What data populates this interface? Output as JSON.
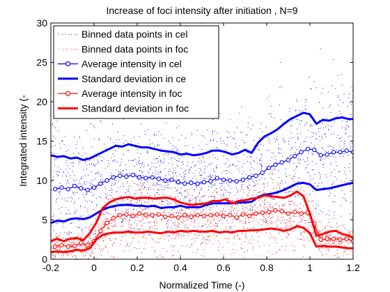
{
  "chart_data": {
    "type": "scatter",
    "title": "Increase of foci intensity after initiation , N=9",
    "xlabel": "Normalized Time (-)",
    "ylabel": "Integrated intensity (-",
    "xlim": [
      -0.2,
      1.2
    ],
    "ylim": [
      0,
      30
    ],
    "xticks": [
      "-0.2",
      "0",
      "0.2",
      "0.4",
      "0.6",
      "0.8",
      "1",
      "1.2"
    ],
    "yticks": [
      "0",
      "5",
      "10",
      "15",
      "20",
      "25",
      "30"
    ],
    "grid": false,
    "legend_position": "top-left",
    "colors": {
      "cell": "#0000ff",
      "foci": "#ff0000"
    },
    "legend": [
      {
        "label": "Binned data points in cel",
        "style": "dots",
        "color": "#0000ff"
      },
      {
        "label": "Binned data points in foc",
        "style": "dots",
        "color": "#ff0000"
      },
      {
        "label": "Average intensity in cel",
        "style": "line-marker",
        "color": "#0000ff"
      },
      {
        "label": "Standard deviation in ce",
        "style": "thick-line",
        "color": "#0000ff"
      },
      {
        "label": "Average intensity in foc",
        "style": "line-marker",
        "color": "#ff0000"
      },
      {
        "label": "Standard deviation in foc",
        "style": "thick-line",
        "color": "#ff0000"
      }
    ],
    "series": [
      {
        "name": "Average intensity in cel",
        "color": "#0000ff",
        "x": [
          -0.18,
          -0.15,
          -0.12,
          -0.09,
          -0.06,
          -0.03,
          0.0,
          0.03,
          0.06,
          0.09,
          0.12,
          0.15,
          0.18,
          0.21,
          0.24,
          0.27,
          0.3,
          0.33,
          0.36,
          0.39,
          0.42,
          0.45,
          0.48,
          0.51,
          0.54,
          0.57,
          0.6,
          0.63,
          0.66,
          0.69,
          0.72,
          0.75,
          0.78,
          0.81,
          0.84,
          0.87,
          0.9,
          0.93,
          0.96,
          0.99,
          1.02,
          1.05,
          1.08,
          1.11,
          1.14,
          1.17,
          1.2
        ],
        "y": [
          8.9,
          9.1,
          8.9,
          9.3,
          9.0,
          8.8,
          9.1,
          9.6,
          10.0,
          10.4,
          10.6,
          10.5,
          10.7,
          10.4,
          10.3,
          10.4,
          10.2,
          10.0,
          10.1,
          9.8,
          9.6,
          9.7,
          9.6,
          9.8,
          9.9,
          10.3,
          10.1,
          10.0,
          9.9,
          10.1,
          10.4,
          10.6,
          11.0,
          11.6,
          12.0,
          12.3,
          12.6,
          13.1,
          13.6,
          14.0,
          13.9,
          13.2,
          13.3,
          13.6,
          13.6,
          13.8,
          13.6
        ]
      },
      {
        "name": "Standard deviation in ce",
        "color": "#0000ff",
        "x": [
          -0.2,
          -0.17,
          -0.14,
          -0.11,
          -0.08,
          -0.05,
          -0.02,
          0.01,
          0.04,
          0.07,
          0.1,
          0.13,
          0.16,
          0.19,
          0.22,
          0.25,
          0.28,
          0.31,
          0.34,
          0.37,
          0.4,
          0.43,
          0.46,
          0.49,
          0.52,
          0.55,
          0.58,
          0.61,
          0.64,
          0.67,
          0.7,
          0.73,
          0.76,
          0.79,
          0.82,
          0.85,
          0.88,
          0.91,
          0.94,
          0.97,
          1.0,
          1.03,
          1.06,
          1.09,
          1.12,
          1.15,
          1.18,
          1.2
        ],
        "y": [
          13.2,
          13.0,
          13.1,
          12.8,
          12.9,
          12.6,
          12.8,
          13.2,
          13.6,
          14.0,
          14.4,
          14.3,
          14.6,
          14.4,
          14.2,
          14.2,
          14.0,
          13.8,
          13.7,
          13.6,
          13.3,
          13.4,
          13.2,
          13.3,
          13.5,
          13.8,
          13.8,
          13.6,
          13.3,
          13.5,
          13.9,
          13.5,
          14.8,
          15.6,
          16.0,
          16.5,
          17.2,
          17.8,
          18.2,
          18.6,
          18.4,
          17.2,
          17.7,
          17.6,
          17.9,
          18.0,
          17.8,
          17.8
        ]
      },
      {
        "name": "Standard deviation in ce",
        "color": "#0000ff",
        "x": [
          -0.2,
          -0.17,
          -0.14,
          -0.11,
          -0.08,
          -0.05,
          -0.02,
          0.01,
          0.04,
          0.07,
          0.1,
          0.13,
          0.16,
          0.19,
          0.22,
          0.25,
          0.28,
          0.31,
          0.34,
          0.37,
          0.4,
          0.43,
          0.46,
          0.49,
          0.52,
          0.55,
          0.58,
          0.61,
          0.64,
          0.67,
          0.7,
          0.73,
          0.76,
          0.79,
          0.82,
          0.85,
          0.88,
          0.91,
          0.94,
          0.97,
          1.0,
          1.03,
          1.06,
          1.09,
          1.12,
          1.15,
          1.18,
          1.2
        ],
        "y": [
          4.6,
          4.9,
          4.8,
          5.1,
          5.2,
          5.1,
          5.3,
          5.8,
          6.3,
          6.6,
          6.8,
          6.9,
          6.9,
          6.8,
          6.8,
          6.7,
          6.8,
          6.5,
          6.6,
          6.6,
          6.8,
          6.6,
          6.6,
          6.6,
          6.9,
          7.1,
          7.1,
          7.1,
          7.1,
          7.2,
          7.2,
          7.3,
          7.9,
          8.2,
          8.3,
          8.5,
          8.8,
          9.2,
          9.6,
          9.7,
          9.5,
          8.8,
          8.9,
          9.0,
          9.2,
          9.4,
          9.6,
          9.7
        ]
      },
      {
        "name": "Average intensity in foc",
        "color": "#ff0000",
        "x": [
          -0.18,
          -0.15,
          -0.12,
          -0.09,
          -0.06,
          -0.03,
          0.0,
          0.03,
          0.06,
          0.09,
          0.12,
          0.15,
          0.18,
          0.21,
          0.24,
          0.27,
          0.3,
          0.33,
          0.36,
          0.39,
          0.42,
          0.45,
          0.48,
          0.51,
          0.54,
          0.57,
          0.6,
          0.63,
          0.66,
          0.69,
          0.72,
          0.75,
          0.78,
          0.81,
          0.84,
          0.87,
          0.9,
          0.93,
          0.96,
          0.99,
          1.02,
          1.05,
          1.08,
          1.11,
          1.14,
          1.17,
          1.2
        ],
        "y": [
          1.6,
          1.8,
          1.6,
          1.7,
          2.1,
          1.8,
          2.3,
          3.6,
          4.6,
          5.2,
          5.6,
          5.7,
          5.5,
          5.8,
          5.6,
          5.6,
          5.7,
          5.4,
          5.5,
          5.3,
          5.6,
          5.4,
          5.6,
          5.5,
          5.6,
          5.7,
          5.5,
          5.6,
          5.3,
          5.7,
          5.5,
          5.8,
          5.9,
          6.0,
          6.2,
          6.1,
          5.8,
          6.0,
          5.8,
          5.9,
          4.5,
          2.5,
          2.6,
          2.6,
          2.5,
          2.6,
          2.3
        ]
      },
      {
        "name": "Standard deviation in foc",
        "color": "#ff0000",
        "x": [
          -0.2,
          -0.17,
          -0.14,
          -0.11,
          -0.08,
          -0.05,
          -0.02,
          0.01,
          0.04,
          0.07,
          0.1,
          0.13,
          0.16,
          0.19,
          0.22,
          0.25,
          0.28,
          0.31,
          0.34,
          0.37,
          0.4,
          0.43,
          0.46,
          0.49,
          0.52,
          0.55,
          0.58,
          0.61,
          0.64,
          0.67,
          0.7,
          0.73,
          0.76,
          0.79,
          0.82,
          0.85,
          0.88,
          0.91,
          0.94,
          0.97,
          1.0,
          1.03,
          1.06,
          1.09,
          1.12,
          1.15,
          1.18,
          1.2
        ],
        "y": [
          2.3,
          2.6,
          2.3,
          2.6,
          2.7,
          2.4,
          3.3,
          4.6,
          6.5,
          7.2,
          7.6,
          7.8,
          7.9,
          7.7,
          7.8,
          7.8,
          7.7,
          7.8,
          7.8,
          7.6,
          7.2,
          7.0,
          6.9,
          7.0,
          7.1,
          7.4,
          7.4,
          7.6,
          7.1,
          7.4,
          7.5,
          7.7,
          7.8,
          8.1,
          8.0,
          7.9,
          7.8,
          8.1,
          8.6,
          8.0,
          5.8,
          3.0,
          3.2,
          3.5,
          3.6,
          3.2,
          3.0,
          2.7
        ]
      },
      {
        "name": "Standard deviation in foc",
        "color": "#ff0000",
        "x": [
          -0.2,
          -0.17,
          -0.14,
          -0.11,
          -0.08,
          -0.05,
          -0.02,
          0.01,
          0.04,
          0.07,
          0.1,
          0.13,
          0.16,
          0.19,
          0.22,
          0.25,
          0.28,
          0.31,
          0.34,
          0.37,
          0.4,
          0.43,
          0.46,
          0.49,
          0.52,
          0.55,
          0.58,
          0.61,
          0.64,
          0.67,
          0.7,
          0.73,
          0.76,
          0.79,
          0.82,
          0.85,
          0.88,
          0.91,
          0.94,
          0.97,
          1.0,
          1.03,
          1.06,
          1.09,
          1.12,
          1.15,
          1.18,
          1.2
        ],
        "y": [
          0.9,
          1.0,
          0.9,
          1.0,
          1.2,
          1.1,
          1.4,
          2.5,
          3.1,
          3.3,
          3.4,
          3.4,
          3.5,
          3.4,
          3.4,
          3.5,
          3.4,
          3.3,
          3.5,
          3.4,
          3.6,
          3.5,
          3.6,
          3.5,
          3.5,
          3.6,
          3.4,
          3.5,
          3.4,
          3.6,
          3.6,
          3.7,
          3.7,
          3.8,
          3.9,
          3.8,
          3.6,
          3.8,
          4.2,
          4.0,
          3.3,
          1.6,
          1.7,
          1.6,
          1.6,
          1.5,
          1.4,
          1.4
        ]
      }
    ]
  }
}
